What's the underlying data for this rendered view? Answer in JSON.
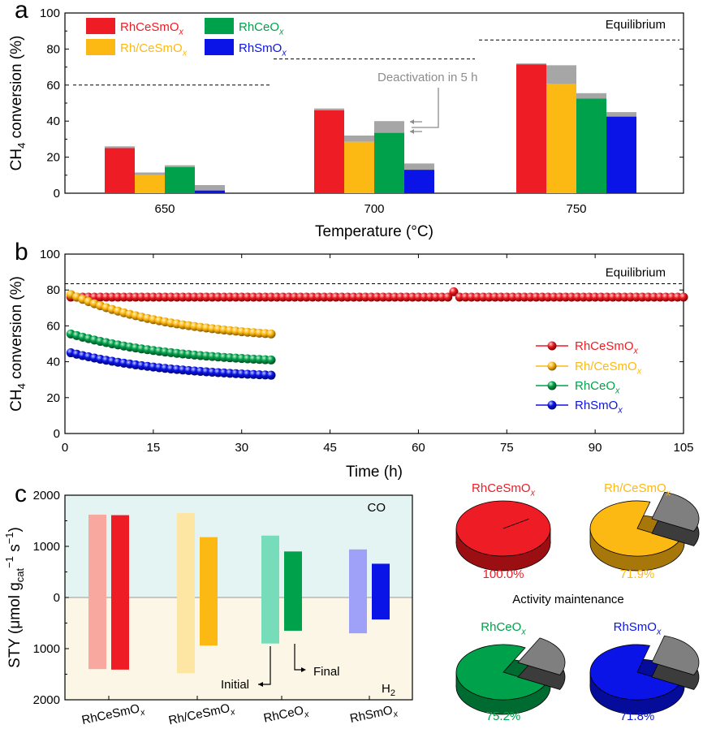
{
  "panels": {
    "a": "a",
    "b": "b",
    "c": "c"
  },
  "colors": {
    "RhCeSmOx": "#ee1c25",
    "Rh/CeSmOx": "#fdb913",
    "RhCeOx": "#00a14b",
    "RhSmOx": "#0a14e6",
    "deactivation": "#a6a6a6",
    "co_band": "#e3f4f2",
    "h2_band": "#fcf6e6"
  },
  "chart_data": [
    {
      "id": "a",
      "type": "bar",
      "ylabel_main": "CH",
      "ylabel_sub": "4",
      "ylabel_rest": " conversion (%)",
      "xlabel": "Temperature (°C)",
      "categories": [
        "650",
        "700",
        "750"
      ],
      "ylim": [
        0,
        100
      ],
      "yticks": [
        0,
        20,
        40,
        60,
        80,
        100
      ],
      "legend": [
        {
          "base": "RhCeSmO",
          "sub": "x",
          "key": "RhCeSmOx"
        },
        {
          "base": "RhCeO",
          "sub": "x",
          "key": "RhCeOx"
        },
        {
          "base": "Rh/CeSmO",
          "sub": "x",
          "key": "Rh/CeSmOx"
        },
        {
          "base": "RhSmO",
          "sub": "x",
          "key": "RhSmOx"
        }
      ],
      "series_order": [
        "RhCeSmOx",
        "Rh/CeSmOx",
        "RhCeOx",
        "RhSmOx"
      ],
      "initial": {
        "RhCeSmOx": [
          26,
          47,
          72
        ],
        "Rh/CeSmOx": [
          11.5,
          32,
          71
        ],
        "RhCeOx": [
          15.5,
          40,
          55.5
        ],
        "RhSmOx": [
          4.5,
          16.5,
          45
        ]
      },
      "final": {
        "RhCeSmOx": [
          25,
          46,
          71.5
        ],
        "Rh/CeSmOx": [
          10,
          28.5,
          60.5
        ],
        "RhCeOx": [
          14.5,
          33.5,
          52.5
        ],
        "RhSmOx": [
          1.5,
          13,
          42.5
        ]
      },
      "equilibrium": [
        60,
        74.5,
        85
      ],
      "equilibrium_label": "Equilibrium",
      "annotation": "Deactivation in 5 h"
    },
    {
      "id": "b",
      "type": "scatter",
      "ylabel_main": "CH",
      "ylabel_sub": "4",
      "ylabel_rest": " conversion (%)",
      "xlabel": "Time (h)",
      "xlim": [
        0,
        105
      ],
      "xticks": [
        0,
        15,
        30,
        45,
        60,
        75,
        90,
        105
      ],
      "ylim": [
        0,
        100
      ],
      "yticks": [
        0,
        20,
        40,
        60,
        80,
        100
      ],
      "equilibrium": 83.5,
      "equilibrium_label": "Equilibrium",
      "series": [
        {
          "key": "RhCeSmOx",
          "base": "RhCeSmO",
          "sub": "x",
          "x_start": 1,
          "x_end": 105,
          "y_start": 76,
          "y_end": 76,
          "spike_x": 66,
          "spike_y": 79
        },
        {
          "key": "Rh/CeSmOx",
          "base": "Rh/CeSmO",
          "sub": "x",
          "x_start": 1,
          "x_end": 35,
          "y_start": 77.5,
          "y_end": 55.5
        },
        {
          "key": "RhCeOx",
          "base": "RhCeO",
          "sub": "x",
          "x_start": 1,
          "x_end": 35,
          "y_start": 55.5,
          "y_end": 41
        },
        {
          "key": "RhSmOx",
          "base": "RhSmO",
          "sub": "x",
          "x_start": 1,
          "x_end": 35,
          "y_start": 45,
          "y_end": 32.5
        }
      ]
    },
    {
      "id": "c",
      "type": "bar",
      "ylabel_main": "STY (μmol g",
      "ylabel_sub": "cat",
      "ylabel_sup": "−1",
      "ylabel_tail": " s",
      "ylabel_sup2": "−1",
      "ylabel_end": ")",
      "yticks": [
        2000,
        1000,
        0,
        1000,
        2000
      ],
      "ylim": [
        -2000,
        2000
      ],
      "categories": [
        {
          "base": "RhCeSmO",
          "sub": "x"
        },
        {
          "base": "Rh/CeSmO",
          "sub": "x"
        },
        {
          "base": "RhCeO",
          "sub": "x"
        },
        {
          "base": "RhSmO",
          "sub": "x"
        }
      ],
      "series_order": [
        "RhCeSmOx",
        "Rh/CeSmOx",
        "RhCeOx",
        "RhSmOx"
      ],
      "initial_co": [
        1620,
        1650,
        1210,
        940
      ],
      "initial_h2": [
        1400,
        1480,
        900,
        700
      ],
      "final_co": [
        1610,
        1180,
        900,
        660
      ],
      "final_h2": [
        1410,
        940,
        650,
        430
      ],
      "co_label": "CO",
      "h2_base": "H",
      "h2_sub": "2",
      "initial_label": "Initial",
      "final_label": "Final"
    },
    {
      "id": "pies",
      "type": "pie",
      "title": "Activity maintenance",
      "items": [
        {
          "key": "RhCeSmOx",
          "base": "RhCeSmO",
          "sub": "x",
          "value": 100.0,
          "label": "100.0%"
        },
        {
          "key": "Rh/CeSmOx",
          "base": "Rh/CeSmO",
          "sub": "x",
          "value": 71.9,
          "label": "71.9%"
        },
        {
          "key": "RhCeOx",
          "base": "RhCeO",
          "sub": "x",
          "value": 75.2,
          "label": "75.2%"
        },
        {
          "key": "RhSmOx",
          "base": "RhSmO",
          "sub": "x",
          "value": 71.8,
          "label": "71.8%"
        }
      ]
    }
  ]
}
